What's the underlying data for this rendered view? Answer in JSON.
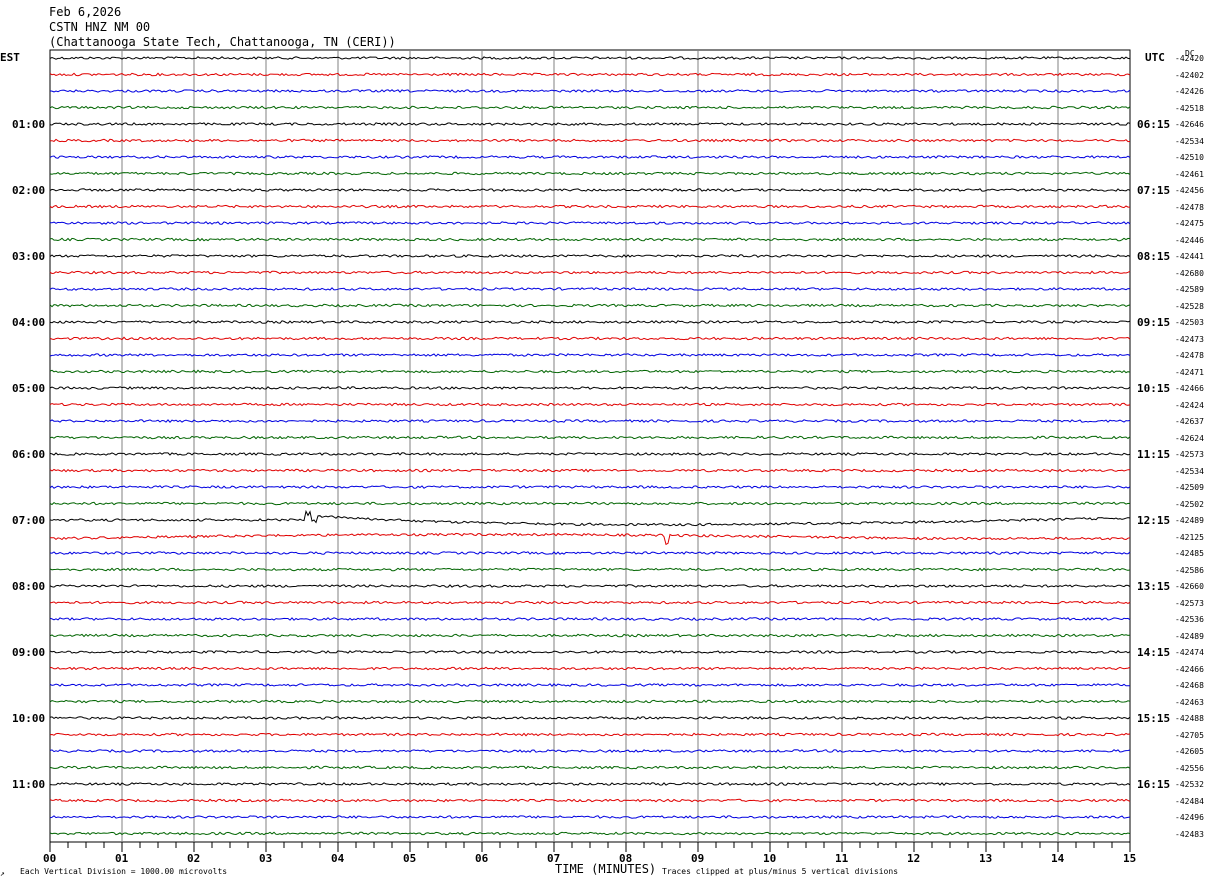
{
  "header": {
    "date": "Feb 6,2026",
    "station": "CSTN HNZ NM 00",
    "location": "(Chattanooga State Tech, Chattanooga, TN (CERI))"
  },
  "left_axis_label": "EST",
  "right_axis_label": "UTC",
  "dc_label": "DC",
  "footer": {
    "scale_note": "Each Vertical Division = 1000.00 microvolts",
    "xlabel": "TIME (MINUTES)",
    "clip_note": "Traces clipped at plus/minus 5 vertical divisions"
  },
  "chart_data": {
    "type": "line",
    "title": "CSTN HNZ NM 00",
    "xlabel": "TIME (MINUTES)",
    "xlim": [
      0,
      15
    ],
    "x_tick_labels": [
      "00",
      "01",
      "02",
      "03",
      "04",
      "05",
      "06",
      "07",
      "08",
      "09",
      "10",
      "11",
      "12",
      "13",
      "14",
      "15"
    ],
    "trace_colors": [
      "#000000",
      "#e00000",
      "#0000e0",
      "#006400"
    ],
    "trace_minutes": 15,
    "est_hour_labels": [
      "01:00",
      "02:00",
      "03:00",
      "04:00",
      "05:00",
      "06:00",
      "07:00",
      "08:00",
      "09:00",
      "10:00",
      "11:00"
    ],
    "utc_hour_labels": [
      "06:15",
      "07:15",
      "08:15",
      "09:15",
      "10:15",
      "11:15",
      "12:15",
      "13:15",
      "14:15",
      "15:15",
      "16:15"
    ],
    "dc_offsets": [
      -42420,
      -42402,
      -42426,
      -42518,
      -42646,
      -42534,
      -42510,
      -42461,
      -42456,
      -42478,
      -42475,
      -42446,
      -42441,
      -42680,
      -42589,
      -42528,
      -42503,
      -42473,
      -42478,
      -42471,
      -42466,
      -42424,
      -42637,
      -42624,
      -42573,
      -42534,
      -42509,
      -42502,
      -42489,
      -42125,
      -42485,
      -42586,
      -42660,
      -42573,
      -42536,
      -42489,
      -42474,
      -42466,
      -42468,
      -42463,
      -42488,
      -42705,
      -42605,
      -42556,
      -42532,
      -42484,
      -42496,
      -42483
    ],
    "events": [
      {
        "trace": 28,
        "minute": 3.6,
        "description": "signal onset"
      },
      {
        "trace": 29,
        "minute": 8.55,
        "description": "spike"
      }
    ],
    "grid": true
  }
}
